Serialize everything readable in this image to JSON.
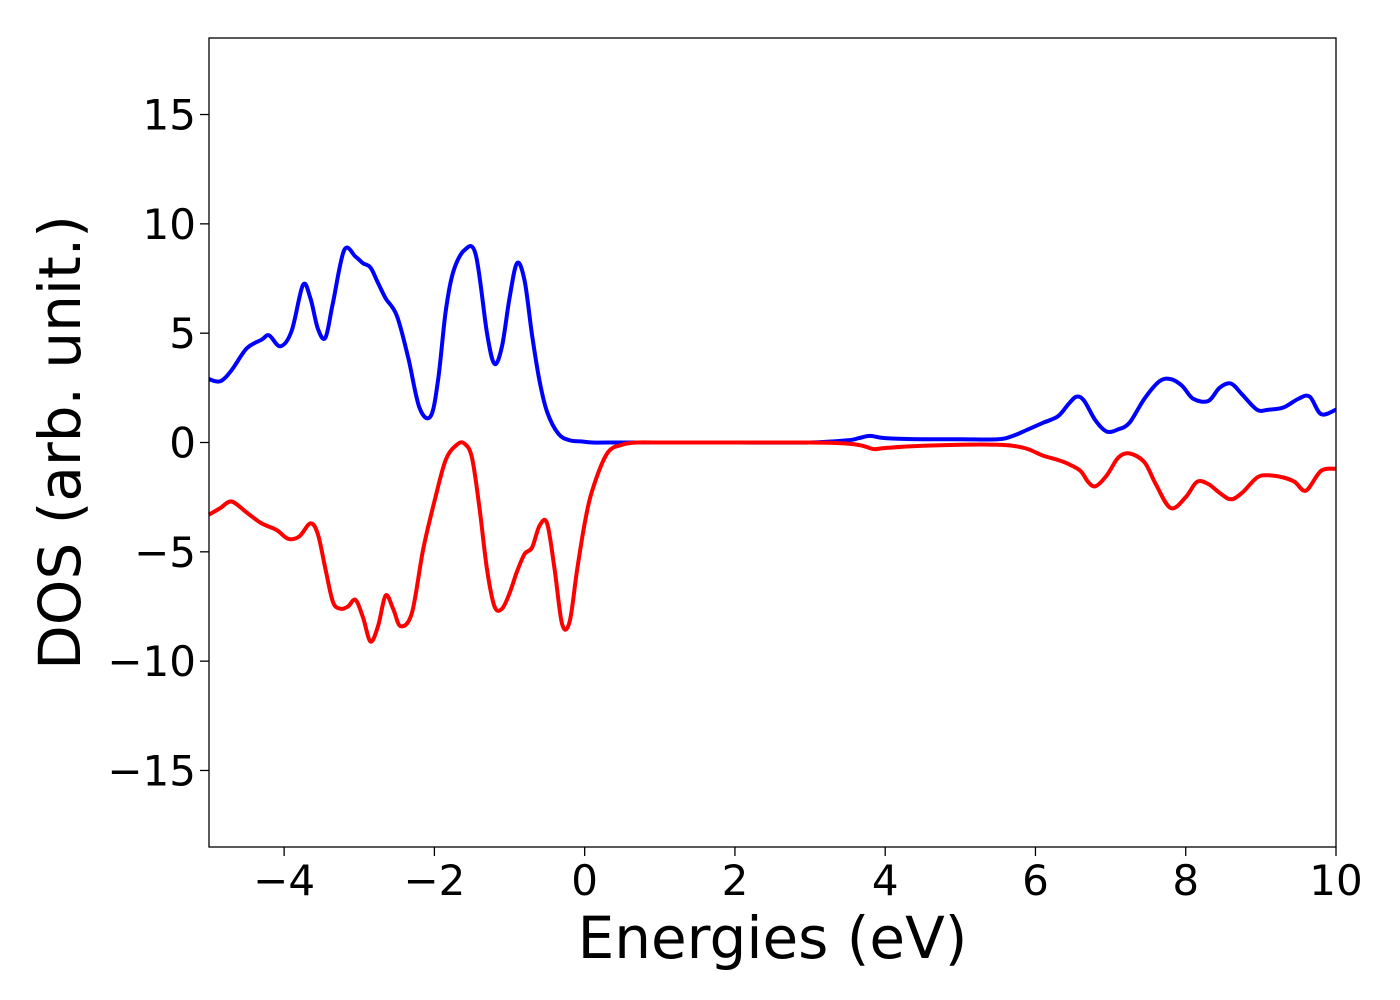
{
  "chart_data": {
    "type": "line",
    "title": "",
    "xlabel": "Energies (eV)",
    "ylabel": "DOS (arb. unit.)",
    "xlim": [
      -5,
      10
    ],
    "ylim": [
      -18.5,
      18.5
    ],
    "xticks": [
      -4,
      -2,
      0,
      2,
      4,
      6,
      8,
      10
    ],
    "yticks": [
      -15,
      -10,
      -5,
      0,
      5,
      10,
      15
    ],
    "xtick_labels": [
      "−4",
      "−2",
      "0",
      "2",
      "4",
      "6",
      "8",
      "10"
    ],
    "ytick_labels": [
      "−15",
      "−10",
      "−5",
      "0",
      "5",
      "10",
      "15"
    ],
    "grid": false,
    "legend": "none",
    "series": [
      {
        "color": "#0000ff",
        "x": [
          -5.0,
          -4.85,
          -4.7,
          -4.5,
          -4.3,
          -4.2,
          -4.05,
          -3.9,
          -3.75,
          -3.65,
          -3.55,
          -3.45,
          -3.35,
          -3.2,
          -3.05,
          -2.95,
          -2.85,
          -2.75,
          -2.65,
          -2.5,
          -2.35,
          -2.2,
          -2.05,
          -1.95,
          -1.85,
          -1.75,
          -1.6,
          -1.45,
          -1.3,
          -1.2,
          -1.1,
          -1.0,
          -0.9,
          -0.8,
          -0.7,
          -0.6,
          -0.5,
          -0.35,
          -0.2,
          -0.05,
          0.1,
          0.3,
          1.0,
          2.0,
          3.0,
          3.5,
          3.65,
          3.8,
          4.0,
          4.5,
          5.0,
          5.5,
          5.7,
          5.9,
          6.1,
          6.3,
          6.45,
          6.55,
          6.65,
          6.8,
          6.95,
          7.1,
          7.25,
          7.45,
          7.65,
          7.8,
          7.95,
          8.1,
          8.3,
          8.45,
          8.6,
          8.75,
          8.95,
          9.1,
          9.3,
          9.5,
          9.65,
          9.8,
          10.0
        ],
        "y": [
          2.9,
          2.8,
          3.3,
          4.3,
          4.7,
          4.9,
          4.4,
          5.1,
          7.2,
          6.6,
          5.2,
          4.8,
          6.4,
          8.8,
          8.5,
          8.2,
          8.0,
          7.3,
          6.6,
          5.8,
          3.9,
          1.6,
          1.2,
          2.9,
          6.0,
          7.8,
          8.8,
          8.6,
          5.0,
          3.6,
          4.4,
          6.6,
          8.2,
          7.4,
          4.9,
          2.8,
          1.4,
          0.4,
          0.1,
          0.05,
          0.0,
          0.0,
          0.0,
          0.0,
          0.0,
          0.1,
          0.2,
          0.3,
          0.2,
          0.15,
          0.15,
          0.15,
          0.3,
          0.6,
          0.9,
          1.2,
          1.8,
          2.1,
          1.9,
          1.0,
          0.5,
          0.6,
          0.9,
          2.0,
          2.8,
          2.9,
          2.6,
          2.0,
          1.9,
          2.5,
          2.7,
          2.2,
          1.5,
          1.5,
          1.6,
          2.0,
          2.1,
          1.3,
          1.5
        ]
      },
      {
        "color": "#ff0000",
        "x": [
          -5.0,
          -4.85,
          -4.7,
          -4.5,
          -4.3,
          -4.1,
          -3.95,
          -3.8,
          -3.65,
          -3.55,
          -3.45,
          -3.35,
          -3.25,
          -3.15,
          -3.05,
          -2.95,
          -2.85,
          -2.75,
          -2.65,
          -2.55,
          -2.45,
          -2.3,
          -2.15,
          -2.0,
          -1.85,
          -1.7,
          -1.6,
          -1.5,
          -1.4,
          -1.3,
          -1.2,
          -1.1,
          -1.0,
          -0.9,
          -0.8,
          -0.7,
          -0.6,
          -0.5,
          -0.4,
          -0.3,
          -0.2,
          -0.1,
          0.0,
          0.1,
          0.3,
          0.5,
          0.7,
          1.0,
          2.0,
          3.0,
          3.5,
          3.7,
          3.85,
          4.0,
          4.5,
          5.0,
          5.5,
          5.7,
          5.9,
          6.1,
          6.3,
          6.45,
          6.6,
          6.7,
          6.8,
          6.95,
          7.1,
          7.25,
          7.45,
          7.6,
          7.8,
          8.0,
          8.15,
          8.3,
          8.45,
          8.6,
          8.75,
          8.95,
          9.1,
          9.3,
          9.45,
          9.6,
          9.8,
          10.0
        ],
        "y": [
          -3.3,
          -3.0,
          -2.7,
          -3.2,
          -3.7,
          -4.0,
          -4.4,
          -4.3,
          -3.7,
          -4.2,
          -5.8,
          -7.3,
          -7.6,
          -7.5,
          -7.2,
          -8.0,
          -9.1,
          -8.4,
          -7.0,
          -7.6,
          -8.4,
          -7.8,
          -4.9,
          -2.7,
          -0.8,
          -0.1,
          -0.05,
          -0.7,
          -3.0,
          -5.8,
          -7.5,
          -7.6,
          -6.9,
          -5.9,
          -5.1,
          -4.8,
          -3.8,
          -3.7,
          -5.8,
          -8.3,
          -8.2,
          -5.8,
          -3.7,
          -2.2,
          -0.5,
          -0.1,
          0.0,
          0.0,
          0.0,
          0.0,
          -0.05,
          -0.15,
          -0.3,
          -0.25,
          -0.15,
          -0.1,
          -0.1,
          -0.15,
          -0.3,
          -0.6,
          -0.8,
          -1.0,
          -1.3,
          -1.8,
          -2.0,
          -1.5,
          -0.7,
          -0.5,
          -0.9,
          -1.9,
          -3.0,
          -2.5,
          -1.8,
          -1.9,
          -2.3,
          -2.6,
          -2.3,
          -1.6,
          -1.5,
          -1.6,
          -1.8,
          -2.2,
          -1.3,
          -1.2
        ]
      }
    ]
  }
}
